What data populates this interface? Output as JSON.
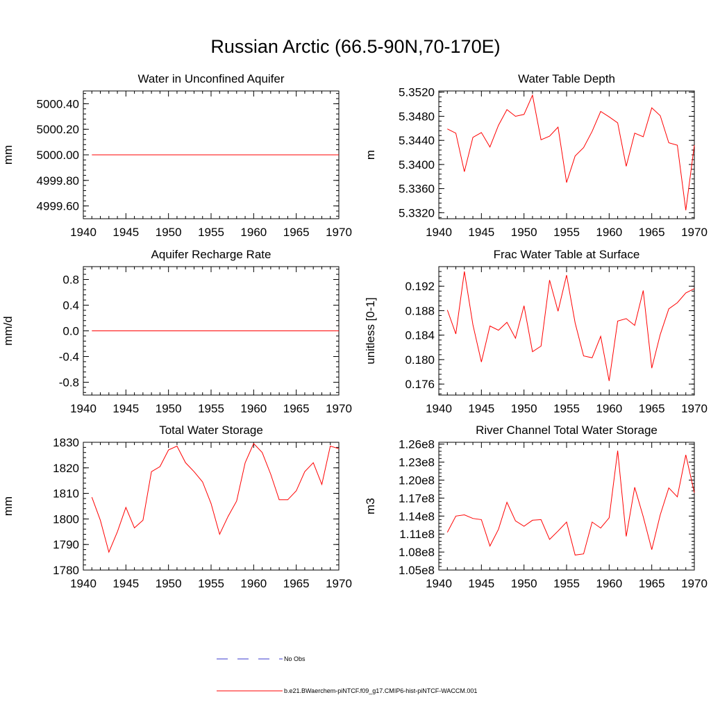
{
  "figure": {
    "title": "Russian Arctic (66.5-90N,70-170E)",
    "line_color": "#ff0000",
    "obs_color": "#3a3acd"
  },
  "legend": {
    "obs_label": "No Obs",
    "model_label": "b.e21.BWaerchem-piNTCF.f09_g17.CMIP6-hist-piNTCF-WACCM.001"
  },
  "chart_data": [
    {
      "type": "line",
      "title": "Water in Unconfined Aquifer",
      "xlabel": "",
      "ylabel": "mm",
      "xlim": [
        1940,
        1970
      ],
      "ylim": [
        4999.5,
        5000.5
      ],
      "xticks": [
        1940,
        1945,
        1950,
        1955,
        1960,
        1965,
        1970
      ],
      "xtick_labels": [
        "1940",
        "1945",
        "1950",
        "1955",
        "1960",
        "1965",
        "1970"
      ],
      "yticks": [
        4999.6,
        4999.8,
        5000.0,
        5000.2,
        5000.4
      ],
      "ytick_labels": [
        "4999.60",
        "4999.80",
        "5000.00",
        "5000.20",
        "5000.40"
      ],
      "yminor": 0.04,
      "x": [
        1941,
        1970
      ],
      "y": [
        5000.0,
        5000.0
      ]
    },
    {
      "type": "line",
      "title": "Water Table Depth",
      "xlabel": "",
      "ylabel": "m",
      "xlim": [
        1940,
        1970
      ],
      "ylim": [
        5.331,
        5.3522
      ],
      "xticks": [
        1940,
        1945,
        1950,
        1955,
        1960,
        1965,
        1970
      ],
      "xtick_labels": [
        "1940",
        "1945",
        "1950",
        "1955",
        "1960",
        "1965",
        "1970"
      ],
      "yticks": [
        5.332,
        5.336,
        5.34,
        5.344,
        5.348,
        5.352
      ],
      "ytick_labels": [
        "5.3320",
        "5.3360",
        "5.3400",
        "5.3440",
        "5.3480",
        "5.3520"
      ],
      "yminor": 0.0008,
      "x": [
        1941,
        1942,
        1943,
        1944,
        1945,
        1946,
        1947,
        1948,
        1949,
        1950,
        1951,
        1952,
        1953,
        1954,
        1955,
        1956,
        1957,
        1958,
        1959,
        1960,
        1961,
        1962,
        1963,
        1964,
        1965,
        1966,
        1967,
        1968,
        1969,
        1970
      ],
      "y": [
        5.3459,
        5.3452,
        5.3388,
        5.3445,
        5.3453,
        5.3429,
        5.3465,
        5.3491,
        5.348,
        5.3483,
        5.3515,
        5.3441,
        5.3447,
        5.3462,
        5.337,
        5.3414,
        5.3428,
        5.3455,
        5.3488,
        5.3479,
        5.3469,
        5.3397,
        5.3452,
        5.3446,
        5.3494,
        5.3481,
        5.3436,
        5.3432,
        5.3324,
        5.3432
      ]
    },
    {
      "type": "line",
      "title": "Aquifer Recharge Rate",
      "xlabel": "",
      "ylabel": "mm/d",
      "xlim": [
        1940,
        1970
      ],
      "ylim": [
        -1.0,
        1.0
      ],
      "xticks": [
        1940,
        1945,
        1950,
        1955,
        1960,
        1965,
        1970
      ],
      "xtick_labels": [
        "1940",
        "1945",
        "1950",
        "1955",
        "1960",
        "1965",
        "1970"
      ],
      "yticks": [
        -0.8,
        -0.4,
        0.0,
        0.4,
        0.8
      ],
      "ytick_labels": [
        "-0.8",
        "-0.4",
        "0.0",
        "0.4",
        "0.8"
      ],
      "yminor": 0.08,
      "x": [
        1941,
        1970
      ],
      "y": [
        0.0,
        0.0
      ]
    },
    {
      "type": "line",
      "title": "Frac Water Table at Surface",
      "xlabel": "",
      "ylabel": "unitless [0-1]",
      "xlim": [
        1940,
        1970
      ],
      "ylim": [
        0.1742,
        0.1952
      ],
      "xticks": [
        1940,
        1945,
        1950,
        1955,
        1960,
        1965,
        1970
      ],
      "xtick_labels": [
        "1940",
        "1945",
        "1950",
        "1955",
        "1960",
        "1965",
        "1970"
      ],
      "yticks": [
        0.176,
        0.18,
        0.184,
        0.188,
        0.192
      ],
      "ytick_labels": [
        "0.176",
        "0.180",
        "0.184",
        "0.188",
        "0.192"
      ],
      "yminor": 0.0008,
      "x": [
        1941,
        1942,
        1943,
        1944,
        1945,
        1946,
        1947,
        1948,
        1949,
        1950,
        1951,
        1952,
        1953,
        1954,
        1955,
        1956,
        1957,
        1958,
        1959,
        1960,
        1961,
        1962,
        1963,
        1964,
        1965,
        1966,
        1967,
        1968,
        1969,
        1970
      ],
      "y": [
        0.1881,
        0.1842,
        0.1944,
        0.1857,
        0.1796,
        0.1855,
        0.1848,
        0.1861,
        0.1835,
        0.1888,
        0.1813,
        0.1822,
        0.193,
        0.1879,
        0.1938,
        0.186,
        0.1806,
        0.1803,
        0.1838,
        0.1765,
        0.1863,
        0.1867,
        0.1856,
        0.1913,
        0.1786,
        0.1841,
        0.1883,
        0.1893,
        0.1909,
        0.1916
      ]
    },
    {
      "type": "line",
      "title": "Total Water Storage",
      "xlabel": "",
      "ylabel": "mm",
      "xlim": [
        1940,
        1970
      ],
      "ylim": [
        1780,
        1830
      ],
      "xticks": [
        1940,
        1945,
        1950,
        1955,
        1960,
        1965,
        1970
      ],
      "xtick_labels": [
        "1940",
        "1945",
        "1950",
        "1955",
        "1960",
        "1965",
        "1970"
      ],
      "yticks": [
        1780,
        1790,
        1800,
        1810,
        1820,
        1830
      ],
      "ytick_labels": [
        "1780",
        "1790",
        "1800",
        "1810",
        "1820",
        "1830"
      ],
      "yminor": 2,
      "x": [
        1941,
        1942,
        1943,
        1944,
        1945,
        1946,
        1947,
        1948,
        1949,
        1950,
        1951,
        1952,
        1953,
        1954,
        1955,
        1956,
        1957,
        1958,
        1959,
        1960,
        1961,
        1962,
        1963,
        1964,
        1965,
        1966,
        1967,
        1968,
        1969,
        1970
      ],
      "y": [
        1808.5,
        1799.5,
        1787.0,
        1795.0,
        1804.5,
        1796.5,
        1799.5,
        1818.5,
        1820.5,
        1827.0,
        1828.5,
        1822.0,
        1818.5,
        1814.5,
        1806.0,
        1794.0,
        1801.0,
        1807.0,
        1822.0,
        1829.5,
        1826.0,
        1817.5,
        1807.5,
        1807.5,
        1811.0,
        1818.5,
        1822.0,
        1813.5,
        1828.5,
        1827.5
      ]
    },
    {
      "type": "line",
      "title": "River Channel Total Water Storage",
      "xlabel": "",
      "ylabel": "m3",
      "xlim": [
        1940,
        1970
      ],
      "ylim": [
        105000000,
        126300000
      ],
      "xticks": [
        1940,
        1945,
        1950,
        1955,
        1960,
        1965,
        1970
      ],
      "xtick_labels": [
        "1940",
        "1945",
        "1950",
        "1955",
        "1960",
        "1965",
        "1970"
      ],
      "yticks": [
        105000000,
        108000000,
        111000000,
        114000000,
        117000000,
        120000000,
        123000000,
        126000000
      ],
      "ytick_labels": [
        "1.05e8",
        "1.08e8",
        "1.11e8",
        "1.14e8",
        "1.17e8",
        "1.20e8",
        "1.23e8",
        "1.26e8"
      ],
      "yminor": 600000,
      "x": [
        1941,
        1942,
        1943,
        1944,
        1945,
        1946,
        1947,
        1948,
        1949,
        1950,
        1951,
        1952,
        1953,
        1954,
        1955,
        1956,
        1957,
        1958,
        1959,
        1960,
        1961,
        1962,
        1963,
        1964,
        1965,
        1966,
        1967,
        1968,
        1969,
        1970
      ],
      "y": [
        111300000,
        114000000,
        114200000,
        113600000,
        113400000,
        109000000,
        111800000,
        116300000,
        113200000,
        112300000,
        113300000,
        113400000,
        110100000,
        111500000,
        113000000,
        107500000,
        107700000,
        113000000,
        112000000,
        113700000,
        124900000,
        110600000,
        118800000,
        113900000,
        108400000,
        114200000,
        118700000,
        117200000,
        124200000,
        117900000
      ]
    }
  ]
}
